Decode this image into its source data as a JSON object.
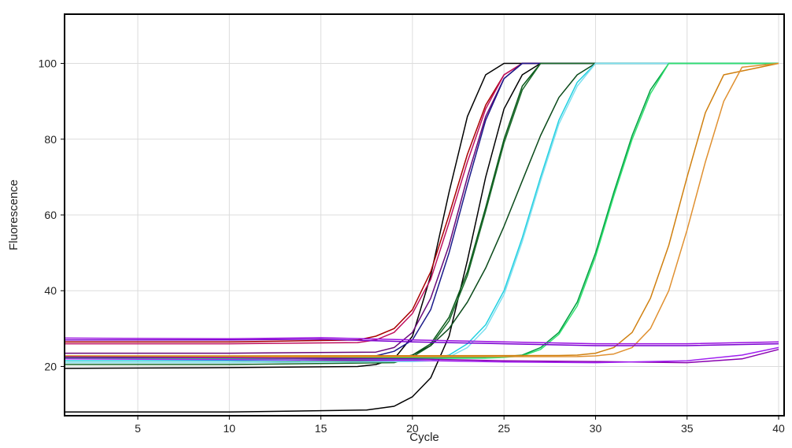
{
  "chart_data": {
    "type": "line",
    "title": "",
    "xlabel": "Cycle",
    "ylabel": "Fluorescence",
    "xlim": [
      1,
      40.3
    ],
    "ylim": [
      7,
      113
    ],
    "xticks": [
      5,
      10,
      15,
      20,
      25,
      30,
      35,
      40
    ],
    "yticks": [
      20,
      40,
      60,
      80,
      100
    ],
    "grid": true,
    "legend": "none",
    "series": [
      {
        "color": "#000000",
        "x": [
          1,
          10,
          17.5,
          19,
          20,
          21,
          22,
          23,
          24,
          25,
          26,
          27,
          40
        ],
        "y": [
          8,
          8,
          8.5,
          9.5,
          12,
          17,
          28,
          48,
          70,
          88,
          97,
          100,
          100
        ]
      },
      {
        "color": "#000000",
        "x": [
          1,
          10,
          17,
          18,
          19,
          20,
          21,
          22,
          23,
          24,
          25,
          40
        ],
        "y": [
          19.5,
          19.7,
          20,
          20.5,
          22,
          28,
          44,
          66,
          86,
          97,
          100,
          100
        ]
      },
      {
        "color": "#aa0000",
        "x": [
          1,
          10,
          17,
          18,
          19,
          20,
          21,
          22,
          23,
          24,
          25,
          26,
          40
        ],
        "y": [
          26.5,
          26.5,
          27,
          28,
          30,
          35,
          45,
          60,
          76,
          89,
          97,
          100,
          100
        ]
      },
      {
        "color": "#c01060",
        "x": [
          1,
          10,
          17,
          18,
          19,
          20,
          21,
          22,
          23,
          24,
          25,
          26,
          40
        ],
        "y": [
          26,
          26,
          26.3,
          27,
          29,
          34,
          43,
          58,
          74,
          88,
          97,
          100,
          100
        ]
      },
      {
        "color": "#6a0a7a",
        "x": [
          1,
          10,
          18,
          19,
          20,
          21,
          22,
          23,
          24,
          25,
          26,
          40
        ],
        "y": [
          23.5,
          23.5,
          23.8,
          25,
          29,
          38,
          52,
          70,
          86,
          96,
          100,
          100
        ]
      },
      {
        "color": "#1a1a8a",
        "x": [
          1,
          10,
          18,
          19,
          20,
          21,
          22,
          23,
          24,
          25,
          26,
          40
        ],
        "y": [
          22.5,
          22.5,
          22.8,
          24,
          27,
          35,
          50,
          68,
          85,
          96,
          100,
          100
        ]
      },
      {
        "color": "#0a5a1a",
        "x": [
          1,
          10,
          19,
          20,
          21,
          22,
          23,
          24,
          25,
          26,
          27,
          40
        ],
        "y": [
          21,
          21,
          21.5,
          23,
          26,
          33,
          45,
          62,
          80,
          94,
          100,
          100
        ]
      },
      {
        "color": "#1a6a2a",
        "x": [
          1,
          10,
          19,
          20,
          21,
          22,
          23,
          24,
          25,
          26,
          27,
          40
        ],
        "y": [
          20.5,
          20.5,
          21,
          22.5,
          25.5,
          32,
          44,
          61,
          79,
          93,
          100,
          100
        ]
      },
      {
        "color": "#0a4a1a",
        "x": [
          1,
          10,
          19,
          20,
          21,
          22,
          23,
          24,
          25,
          26,
          27,
          28,
          29,
          30,
          40
        ],
        "y": [
          21.5,
          21.5,
          22,
          23,
          25.5,
          30,
          37,
          46,
          57,
          69,
          81,
          91,
          97,
          100,
          100
        ]
      },
      {
        "color": "#20d0e0",
        "x": [
          1,
          10,
          20,
          21,
          22,
          23,
          24,
          25,
          26,
          27,
          28,
          29,
          30,
          40
        ],
        "y": [
          21.5,
          21.5,
          21.8,
          22,
          23,
          26,
          31,
          40,
          54,
          70,
          85,
          95,
          100,
          100
        ]
      },
      {
        "color": "#80e0f0",
        "x": [
          1,
          10,
          20,
          21,
          22,
          23,
          24,
          25,
          26,
          27,
          28,
          29,
          30,
          40
        ],
        "y": [
          21,
          21,
          21.3,
          21.5,
          22.5,
          25,
          30,
          39,
          53,
          69,
          84,
          94,
          100,
          100
        ]
      },
      {
        "color": "#00a040",
        "x": [
          1,
          10,
          24,
          25,
          26,
          27,
          28,
          29,
          30,
          31,
          32,
          33,
          34,
          40
        ],
        "y": [
          22.2,
          22.2,
          22.4,
          22.6,
          23,
          25,
          29,
          37,
          50,
          66,
          81,
          93,
          100,
          100
        ]
      },
      {
        "color": "#30e070",
        "x": [
          1,
          10,
          24,
          25,
          26,
          27,
          28,
          29,
          30,
          31,
          32,
          33,
          34,
          40
        ],
        "y": [
          22,
          22,
          22.2,
          22.4,
          22.8,
          24.5,
          28.5,
          36,
          49,
          65,
          80,
          92,
          100,
          100
        ]
      },
      {
        "color": "#d08010",
        "x": [
          1,
          10,
          28,
          29,
          30,
          31,
          32,
          33,
          34,
          35,
          36,
          37,
          40
        ],
        "y": [
          22.8,
          22.8,
          22.9,
          23,
          23.5,
          25,
          29,
          38,
          52,
          70,
          87,
          97,
          100
        ]
      },
      {
        "color": "#e09030",
        "x": [
          1,
          10,
          29,
          30,
          31,
          32,
          33,
          34,
          35,
          36,
          37,
          38,
          40
        ],
        "y": [
          22.5,
          22.5,
          22.6,
          22.8,
          23.3,
          25,
          30,
          40,
          56,
          74,
          90,
          99,
          100
        ]
      },
      {
        "color": "#7a00d0",
        "x": [
          1,
          10,
          15,
          20,
          25,
          30,
          35,
          40
        ],
        "y": [
          27,
          27,
          27.2,
          26.5,
          26,
          25.5,
          25.5,
          26
        ]
      },
      {
        "color": "#9a10e0",
        "x": [
          1,
          10,
          15,
          20,
          25,
          30,
          35,
          40
        ],
        "y": [
          27.5,
          27.3,
          27.6,
          27,
          26.5,
          26,
          26,
          26.5
        ]
      },
      {
        "color": "#8a00b0",
        "x": [
          1,
          10,
          20,
          25,
          30,
          35,
          38,
          40
        ],
        "y": [
          22.5,
          22.3,
          22,
          21.5,
          21.3,
          21,
          22,
          24.5
        ]
      },
      {
        "color": "#a020f0",
        "x": [
          1,
          10,
          20,
          25,
          30,
          35,
          38,
          40
        ],
        "y": [
          22,
          21.8,
          21.6,
          21.2,
          21,
          21.5,
          23,
          25
        ]
      }
    ]
  }
}
